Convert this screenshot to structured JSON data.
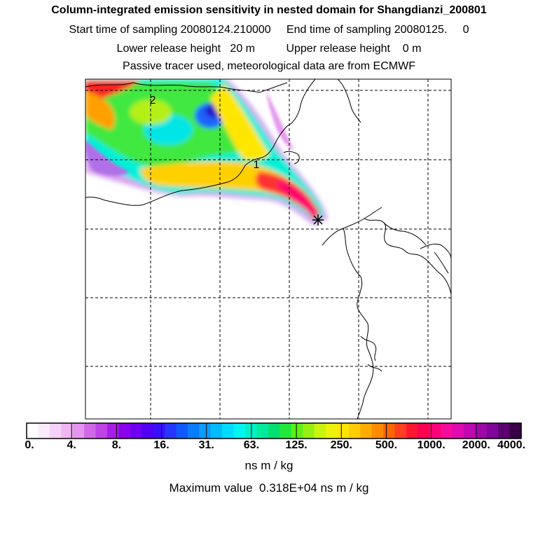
{
  "header": {
    "title": "Column-integrated emission sensitivity in nested domain for Shangdianzi_200801",
    "sampling_line": "Start time of sampling 20080124.210000     End time of sampling 20080125.     0",
    "release_line": "Lower release height   20 m          Upper release height    0 m",
    "tracer_line": "Passive tracer used, meteorological data are from ECMWF"
  },
  "map": {
    "contour_labels": [
      "2",
      "1"
    ],
    "receptor_symbol": "star"
  },
  "colorbar": {
    "tick_labels": [
      "0.",
      "4.",
      "8.",
      "16.",
      "31.",
      "63.",
      "125.",
      "250.",
      "500.",
      "1000.",
      "2000.",
      "4000."
    ],
    "units": "ns m / kg",
    "colors": [
      "#ffffff",
      "#fbeafc",
      "#f6d2f8",
      "#efb6f3",
      "#e496ee",
      "#d26ae8",
      "#c043e6",
      "#a81ee8",
      "#8b00ec",
      "#6f00f2",
      "#5200f5",
      "#3a10ff",
      "#2436ff",
      "#1058ff",
      "#0a7cff",
      "#0a9cff",
      "#00bcff",
      "#00dcff",
      "#00f4f2",
      "#00f0c8",
      "#00ea9c",
      "#00e070",
      "#20e83c",
      "#5af01a",
      "#96f012",
      "#c8f410",
      "#eef20a",
      "#ffe600",
      "#ffcc00",
      "#ffac00",
      "#ff8c00",
      "#ff6600",
      "#ff4020",
      "#ff1830",
      "#ff0050",
      "#ff0078",
      "#f50c9a",
      "#e00ab0",
      "#c009b0",
      "#a007a8",
      "#80059a",
      "#5c0270",
      "#3a0048"
    ]
  },
  "maximum_line": "Maximum value  0.318E+04 ns m / kg"
}
